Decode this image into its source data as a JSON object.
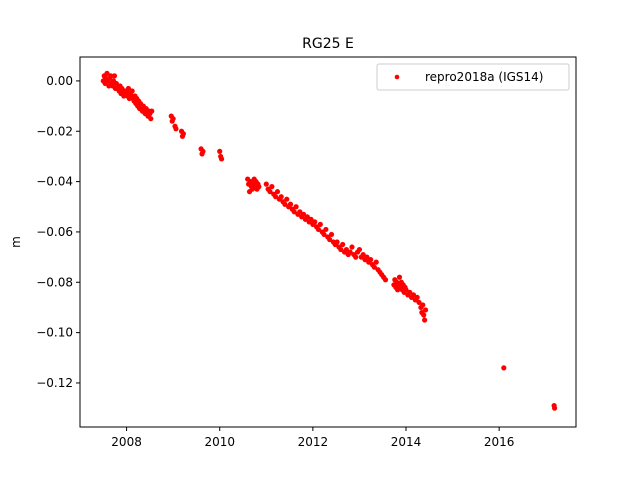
{
  "chart_data": {
    "type": "scatter",
    "title": "RG25 E",
    "xlabel": "",
    "ylabel": "m",
    "xlim": [
      2007.0,
      2017.65
    ],
    "ylim": [
      -0.1375,
      0.0095
    ],
    "xticks": [
      2008,
      2010,
      2012,
      2014,
      2016
    ],
    "xtick_labels": [
      "2008",
      "2010",
      "2012",
      "2014",
      "2016"
    ],
    "yticks": [
      0.0,
      -0.02,
      -0.04,
      -0.06,
      -0.08,
      -0.1,
      -0.12
    ],
    "ytick_labels": [
      "0.00",
      "−0.02",
      "−0.04",
      "−0.06",
      "−0.08",
      "−0.10",
      "−0.12"
    ],
    "grid": false,
    "legend_position": "top-right",
    "series": [
      {
        "name": "repro2018a (IGS14)",
        "color": "#ff0000",
        "marker": "point",
        "points": [
          [
            2007.5,
            0.0
          ],
          [
            2007.52,
            0.002
          ],
          [
            2007.54,
            -0.001
          ],
          [
            2007.56,
            0.001
          ],
          [
            2007.58,
            0.003
          ],
          [
            2007.6,
            0.0
          ],
          [
            2007.62,
            -0.002
          ],
          [
            2007.64,
            0.001
          ],
          [
            2007.66,
            0.002
          ],
          [
            2007.68,
            -0.001
          ],
          [
            2007.7,
            -0.002
          ],
          [
            2007.72,
            0.0
          ],
          [
            2007.74,
            0.002
          ],
          [
            2007.76,
            -0.003
          ],
          [
            2007.78,
            -0.001
          ],
          [
            2007.8,
            -0.003
          ],
          [
            2007.82,
            -0.002
          ],
          [
            2007.84,
            -0.004
          ],
          [
            2007.86,
            -0.002
          ],
          [
            2007.88,
            -0.005
          ],
          [
            2007.9,
            -0.003
          ],
          [
            2007.92,
            -0.004
          ],
          [
            2007.94,
            -0.006
          ],
          [
            2007.96,
            -0.004
          ],
          [
            2007.98,
            -0.005
          ],
          [
            2008.0,
            -0.004
          ],
          [
            2008.02,
            -0.006
          ],
          [
            2008.04,
            -0.003
          ],
          [
            2008.06,
            -0.007
          ],
          [
            2008.08,
            -0.005
          ],
          [
            2008.1,
            -0.006
          ],
          [
            2008.12,
            -0.004
          ],
          [
            2008.14,
            -0.007
          ],
          [
            2008.16,
            -0.008
          ],
          [
            2008.18,
            -0.006
          ],
          [
            2008.2,
            -0.009
          ],
          [
            2008.22,
            -0.007
          ],
          [
            2008.24,
            -0.01
          ],
          [
            2008.26,
            -0.008
          ],
          [
            2008.28,
            -0.011
          ],
          [
            2008.3,
            -0.009
          ],
          [
            2008.32,
            -0.01
          ],
          [
            2008.34,
            -0.012
          ],
          [
            2008.36,
            -0.01
          ],
          [
            2008.38,
            -0.011
          ],
          [
            2008.4,
            -0.013
          ],
          [
            2008.42,
            -0.011
          ],
          [
            2008.44,
            -0.012
          ],
          [
            2008.46,
            -0.014
          ],
          [
            2008.48,
            -0.012
          ],
          [
            2008.5,
            -0.013
          ],
          [
            2008.52,
            -0.015
          ],
          [
            2008.54,
            -0.012
          ],
          [
            2008.96,
            -0.014
          ],
          [
            2008.98,
            -0.016
          ],
          [
            2009.0,
            -0.015
          ],
          [
            2009.04,
            -0.018
          ],
          [
            2009.06,
            -0.019
          ],
          [
            2009.18,
            -0.02
          ],
          [
            2009.2,
            -0.022
          ],
          [
            2009.22,
            -0.021
          ],
          [
            2009.6,
            -0.027
          ],
          [
            2009.62,
            -0.029
          ],
          [
            2009.64,
            -0.028
          ],
          [
            2010.0,
            -0.028
          ],
          [
            2010.02,
            -0.03
          ],
          [
            2010.04,
            -0.031
          ],
          [
            2010.6,
            -0.039
          ],
          [
            2010.62,
            -0.041
          ],
          [
            2010.64,
            -0.044
          ],
          [
            2010.66,
            -0.04
          ],
          [
            2010.68,
            -0.042
          ],
          [
            2010.7,
            -0.043
          ],
          [
            2010.72,
            -0.041
          ],
          [
            2010.74,
            -0.039
          ],
          [
            2010.76,
            -0.042
          ],
          [
            2010.78,
            -0.04
          ],
          [
            2010.8,
            -0.043
          ],
          [
            2010.82,
            -0.041
          ],
          [
            2010.84,
            -0.042
          ],
          [
            2011.0,
            -0.041
          ],
          [
            2011.04,
            -0.043
          ],
          [
            2011.08,
            -0.044
          ],
          [
            2011.12,
            -0.042
          ],
          [
            2011.16,
            -0.045
          ],
          [
            2011.2,
            -0.046
          ],
          [
            2011.24,
            -0.044
          ],
          [
            2011.28,
            -0.047
          ],
          [
            2011.32,
            -0.046
          ],
          [
            2011.36,
            -0.048
          ],
          [
            2011.4,
            -0.049
          ],
          [
            2011.44,
            -0.047
          ],
          [
            2011.48,
            -0.05
          ],
          [
            2011.52,
            -0.049
          ],
          [
            2011.56,
            -0.051
          ],
          [
            2011.6,
            -0.052
          ],
          [
            2011.64,
            -0.05
          ],
          [
            2011.68,
            -0.053
          ],
          [
            2011.72,
            -0.052
          ],
          [
            2011.76,
            -0.054
          ],
          [
            2011.8,
            -0.053
          ],
          [
            2011.84,
            -0.055
          ],
          [
            2011.88,
            -0.054
          ],
          [
            2011.92,
            -0.056
          ],
          [
            2011.96,
            -0.055
          ],
          [
            2012.0,
            -0.057
          ],
          [
            2012.04,
            -0.056
          ],
          [
            2012.08,
            -0.058
          ],
          [
            2012.12,
            -0.059
          ],
          [
            2012.16,
            -0.057
          ],
          [
            2012.2,
            -0.06
          ],
          [
            2012.24,
            -0.061
          ],
          [
            2012.28,
            -0.059
          ],
          [
            2012.32,
            -0.062
          ],
          [
            2012.36,
            -0.063
          ],
          [
            2012.4,
            -0.061
          ],
          [
            2012.44,
            -0.064
          ],
          [
            2012.48,
            -0.065
          ],
          [
            2012.52,
            -0.064
          ],
          [
            2012.56,
            -0.066
          ],
          [
            2012.6,
            -0.067
          ],
          [
            2012.64,
            -0.065
          ],
          [
            2012.68,
            -0.068
          ],
          [
            2012.72,
            -0.067
          ],
          [
            2012.76,
            -0.069
          ],
          [
            2012.8,
            -0.068
          ],
          [
            2012.84,
            -0.066
          ],
          [
            2012.88,
            -0.069
          ],
          [
            2012.92,
            -0.07
          ],
          [
            2012.96,
            -0.068
          ],
          [
            2013.0,
            -0.067
          ],
          [
            2013.04,
            -0.07
          ],
          [
            2013.08,
            -0.069
          ],
          [
            2013.12,
            -0.071
          ],
          [
            2013.16,
            -0.07
          ],
          [
            2013.2,
            -0.072
          ],
          [
            2013.24,
            -0.071
          ],
          [
            2013.28,
            -0.073
          ],
          [
            2013.32,
            -0.074
          ],
          [
            2013.36,
            -0.072
          ],
          [
            2013.4,
            -0.075
          ],
          [
            2013.44,
            -0.076
          ],
          [
            2013.48,
            -0.077
          ],
          [
            2013.52,
            -0.078
          ],
          [
            2013.56,
            -0.079
          ],
          [
            2013.74,
            -0.081
          ],
          [
            2013.76,
            -0.079
          ],
          [
            2013.78,
            -0.082
          ],
          [
            2013.8,
            -0.08
          ],
          [
            2013.82,
            -0.083
          ],
          [
            2013.84,
            -0.081
          ],
          [
            2013.86,
            -0.078
          ],
          [
            2013.88,
            -0.082
          ],
          [
            2013.9,
            -0.08
          ],
          [
            2013.92,
            -0.083
          ],
          [
            2013.94,
            -0.081
          ],
          [
            2013.96,
            -0.084
          ],
          [
            2013.98,
            -0.082
          ],
          [
            2014.0,
            -0.083
          ],
          [
            2014.04,
            -0.085
          ],
          [
            2014.08,
            -0.084
          ],
          [
            2014.12,
            -0.086
          ],
          [
            2014.16,
            -0.085
          ],
          [
            2014.2,
            -0.087
          ],
          [
            2014.24,
            -0.086
          ],
          [
            2014.28,
            -0.088
          ],
          [
            2014.32,
            -0.09
          ],
          [
            2014.34,
            -0.092
          ],
          [
            2014.36,
            -0.089
          ],
          [
            2014.38,
            -0.093
          ],
          [
            2014.4,
            -0.095
          ],
          [
            2014.42,
            -0.091
          ],
          [
            2016.1,
            -0.114
          ],
          [
            2017.18,
            -0.129
          ],
          [
            2017.19,
            -0.13
          ]
        ]
      }
    ]
  }
}
